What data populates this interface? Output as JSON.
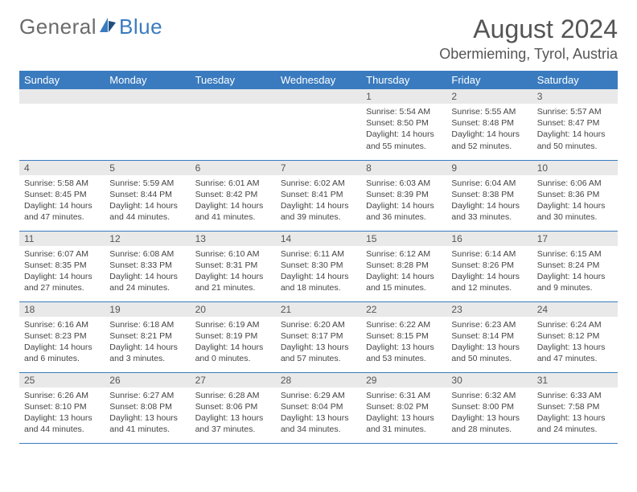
{
  "brand": {
    "part1": "General",
    "part2": "Blue"
  },
  "title": "August 2024",
  "location": "Obermieming, Tyrol, Austria",
  "colors": {
    "header_bg": "#3a7bbf",
    "header_text": "#ffffff",
    "daynum_bg": "#e9e9e9",
    "text": "#555555",
    "cell_border": "#3a7bbf",
    "logo_gray": "#6b6b6b",
    "logo_blue": "#3a7bbf"
  },
  "weekdays": [
    "Sunday",
    "Monday",
    "Tuesday",
    "Wednesday",
    "Thursday",
    "Friday",
    "Saturday"
  ],
  "weeks": [
    [
      null,
      null,
      null,
      null,
      {
        "n": "1",
        "sr": "Sunrise: 5:54 AM",
        "ss": "Sunset: 8:50 PM",
        "dl1": "Daylight: 14 hours",
        "dl2": "and 55 minutes."
      },
      {
        "n": "2",
        "sr": "Sunrise: 5:55 AM",
        "ss": "Sunset: 8:48 PM",
        "dl1": "Daylight: 14 hours",
        "dl2": "and 52 minutes."
      },
      {
        "n": "3",
        "sr": "Sunrise: 5:57 AM",
        "ss": "Sunset: 8:47 PM",
        "dl1": "Daylight: 14 hours",
        "dl2": "and 50 minutes."
      }
    ],
    [
      {
        "n": "4",
        "sr": "Sunrise: 5:58 AM",
        "ss": "Sunset: 8:45 PM",
        "dl1": "Daylight: 14 hours",
        "dl2": "and 47 minutes."
      },
      {
        "n": "5",
        "sr": "Sunrise: 5:59 AM",
        "ss": "Sunset: 8:44 PM",
        "dl1": "Daylight: 14 hours",
        "dl2": "and 44 minutes."
      },
      {
        "n": "6",
        "sr": "Sunrise: 6:01 AM",
        "ss": "Sunset: 8:42 PM",
        "dl1": "Daylight: 14 hours",
        "dl2": "and 41 minutes."
      },
      {
        "n": "7",
        "sr": "Sunrise: 6:02 AM",
        "ss": "Sunset: 8:41 PM",
        "dl1": "Daylight: 14 hours",
        "dl2": "and 39 minutes."
      },
      {
        "n": "8",
        "sr": "Sunrise: 6:03 AM",
        "ss": "Sunset: 8:39 PM",
        "dl1": "Daylight: 14 hours",
        "dl2": "and 36 minutes."
      },
      {
        "n": "9",
        "sr": "Sunrise: 6:04 AM",
        "ss": "Sunset: 8:38 PM",
        "dl1": "Daylight: 14 hours",
        "dl2": "and 33 minutes."
      },
      {
        "n": "10",
        "sr": "Sunrise: 6:06 AM",
        "ss": "Sunset: 8:36 PM",
        "dl1": "Daylight: 14 hours",
        "dl2": "and 30 minutes."
      }
    ],
    [
      {
        "n": "11",
        "sr": "Sunrise: 6:07 AM",
        "ss": "Sunset: 8:35 PM",
        "dl1": "Daylight: 14 hours",
        "dl2": "and 27 minutes."
      },
      {
        "n": "12",
        "sr": "Sunrise: 6:08 AM",
        "ss": "Sunset: 8:33 PM",
        "dl1": "Daylight: 14 hours",
        "dl2": "and 24 minutes."
      },
      {
        "n": "13",
        "sr": "Sunrise: 6:10 AM",
        "ss": "Sunset: 8:31 PM",
        "dl1": "Daylight: 14 hours",
        "dl2": "and 21 minutes."
      },
      {
        "n": "14",
        "sr": "Sunrise: 6:11 AM",
        "ss": "Sunset: 8:30 PM",
        "dl1": "Daylight: 14 hours",
        "dl2": "and 18 minutes."
      },
      {
        "n": "15",
        "sr": "Sunrise: 6:12 AM",
        "ss": "Sunset: 8:28 PM",
        "dl1": "Daylight: 14 hours",
        "dl2": "and 15 minutes."
      },
      {
        "n": "16",
        "sr": "Sunrise: 6:14 AM",
        "ss": "Sunset: 8:26 PM",
        "dl1": "Daylight: 14 hours",
        "dl2": "and 12 minutes."
      },
      {
        "n": "17",
        "sr": "Sunrise: 6:15 AM",
        "ss": "Sunset: 8:24 PM",
        "dl1": "Daylight: 14 hours",
        "dl2": "and 9 minutes."
      }
    ],
    [
      {
        "n": "18",
        "sr": "Sunrise: 6:16 AM",
        "ss": "Sunset: 8:23 PM",
        "dl1": "Daylight: 14 hours",
        "dl2": "and 6 minutes."
      },
      {
        "n": "19",
        "sr": "Sunrise: 6:18 AM",
        "ss": "Sunset: 8:21 PM",
        "dl1": "Daylight: 14 hours",
        "dl2": "and 3 minutes."
      },
      {
        "n": "20",
        "sr": "Sunrise: 6:19 AM",
        "ss": "Sunset: 8:19 PM",
        "dl1": "Daylight: 14 hours",
        "dl2": "and 0 minutes."
      },
      {
        "n": "21",
        "sr": "Sunrise: 6:20 AM",
        "ss": "Sunset: 8:17 PM",
        "dl1": "Daylight: 13 hours",
        "dl2": "and 57 minutes."
      },
      {
        "n": "22",
        "sr": "Sunrise: 6:22 AM",
        "ss": "Sunset: 8:15 PM",
        "dl1": "Daylight: 13 hours",
        "dl2": "and 53 minutes."
      },
      {
        "n": "23",
        "sr": "Sunrise: 6:23 AM",
        "ss": "Sunset: 8:14 PM",
        "dl1": "Daylight: 13 hours",
        "dl2": "and 50 minutes."
      },
      {
        "n": "24",
        "sr": "Sunrise: 6:24 AM",
        "ss": "Sunset: 8:12 PM",
        "dl1": "Daylight: 13 hours",
        "dl2": "and 47 minutes."
      }
    ],
    [
      {
        "n": "25",
        "sr": "Sunrise: 6:26 AM",
        "ss": "Sunset: 8:10 PM",
        "dl1": "Daylight: 13 hours",
        "dl2": "and 44 minutes."
      },
      {
        "n": "26",
        "sr": "Sunrise: 6:27 AM",
        "ss": "Sunset: 8:08 PM",
        "dl1": "Daylight: 13 hours",
        "dl2": "and 41 minutes."
      },
      {
        "n": "27",
        "sr": "Sunrise: 6:28 AM",
        "ss": "Sunset: 8:06 PM",
        "dl1": "Daylight: 13 hours",
        "dl2": "and 37 minutes."
      },
      {
        "n": "28",
        "sr": "Sunrise: 6:29 AM",
        "ss": "Sunset: 8:04 PM",
        "dl1": "Daylight: 13 hours",
        "dl2": "and 34 minutes."
      },
      {
        "n": "29",
        "sr": "Sunrise: 6:31 AM",
        "ss": "Sunset: 8:02 PM",
        "dl1": "Daylight: 13 hours",
        "dl2": "and 31 minutes."
      },
      {
        "n": "30",
        "sr": "Sunrise: 6:32 AM",
        "ss": "Sunset: 8:00 PM",
        "dl1": "Daylight: 13 hours",
        "dl2": "and 28 minutes."
      },
      {
        "n": "31",
        "sr": "Sunrise: 6:33 AM",
        "ss": "Sunset: 7:58 PM",
        "dl1": "Daylight: 13 hours",
        "dl2": "and 24 minutes."
      }
    ]
  ]
}
